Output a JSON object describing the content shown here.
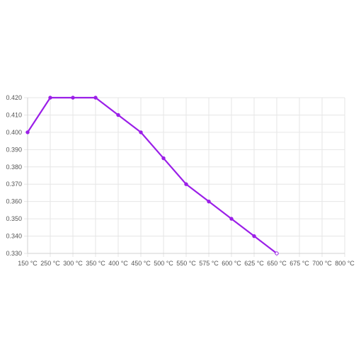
{
  "chart_data": {
    "type": "line",
    "x_categories": [
      "150 °C",
      "250 °C",
      "300 °C",
      "350 °C",
      "400 °C",
      "450 °C",
      "500 °C",
      "550 °C",
      "575 °C",
      "600 °C",
      "625 °C",
      "650 °C",
      "675 °C",
      "700 °C",
      "800 °C"
    ],
    "y_tick_labels": [
      "0.330",
      "0.340",
      "0.350",
      "0.360",
      "0.370",
      "0.380",
      "0.390",
      "0.400",
      "0.410",
      "0.420"
    ],
    "ylim": [
      0.33,
      0.42
    ],
    "grid": true,
    "legend": "none",
    "series": [
      {
        "color": "#9b1fe8",
        "values": [
          0.4,
          0.42,
          0.42,
          0.42,
          0.41,
          0.4,
          0.385,
          0.37,
          0.36,
          0.35,
          0.34,
          0.33,
          null,
          null,
          null
        ]
      }
    ]
  }
}
